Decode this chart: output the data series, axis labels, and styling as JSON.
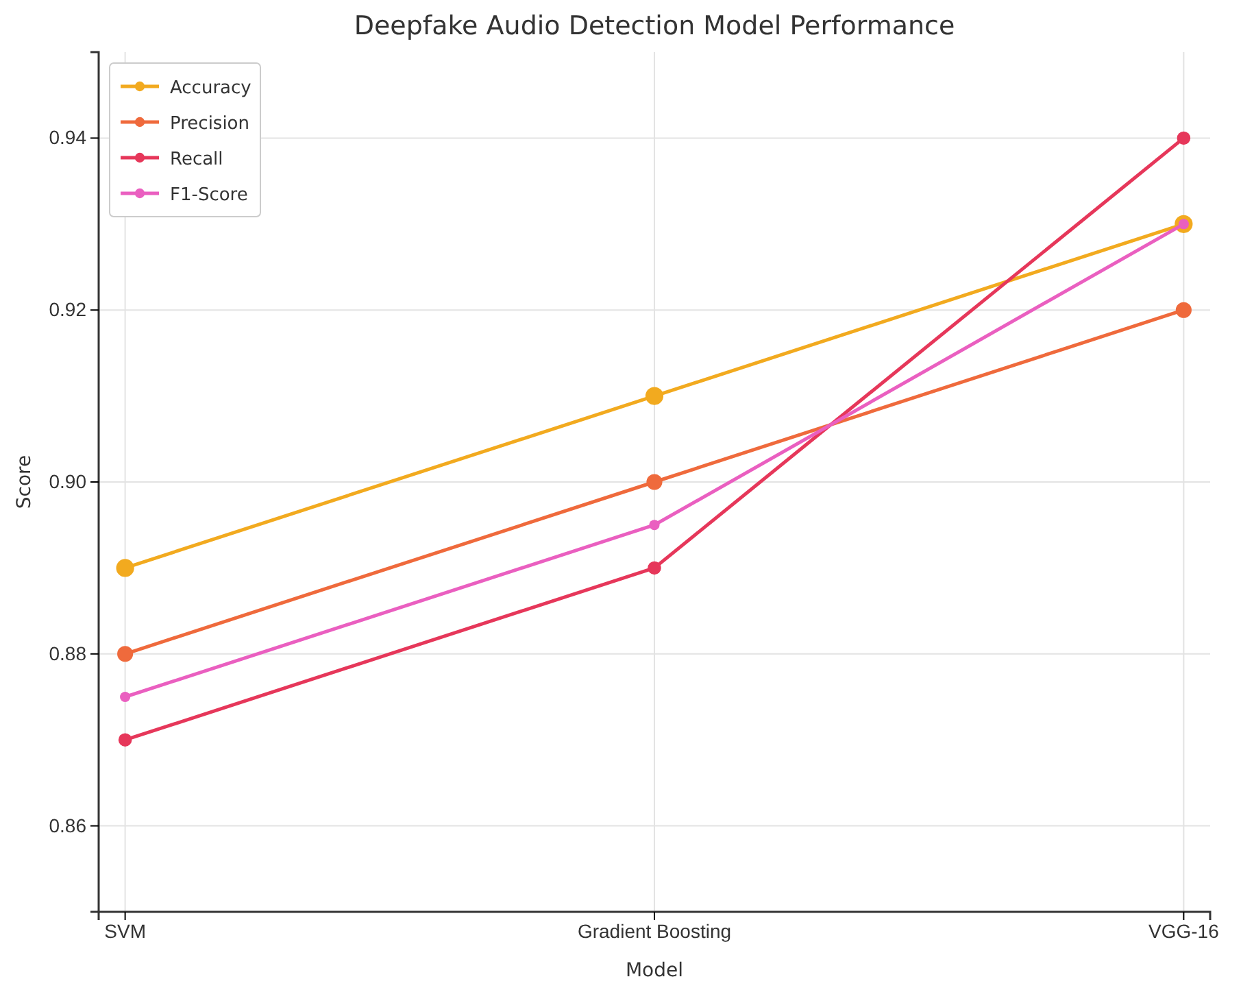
{
  "chart_data": {
    "type": "line",
    "title": "Deepfake Audio Detection Model Performance",
    "xlabel": "Model",
    "ylabel": "Score",
    "categories": [
      "SVM",
      "Gradient Boosting",
      "VGG-16"
    ],
    "series": [
      {
        "name": "Accuracy",
        "color": "#f2aa1f",
        "values": [
          0.89,
          0.91,
          0.93
        ]
      },
      {
        "name": "Precision",
        "color": "#ef6a3c",
        "values": [
          0.88,
          0.9,
          0.92
        ]
      },
      {
        "name": "Recall",
        "color": "#e6375a",
        "values": [
          0.87,
          0.89,
          0.94
        ]
      },
      {
        "name": "F1-Score",
        "color": "#ea5fc0",
        "values": [
          0.875,
          0.895,
          0.93
        ]
      }
    ],
    "ylim": [
      0.85,
      0.95
    ],
    "yticks": [
      0.86,
      0.88,
      {
        "value": 0.9,
        "label": "0.90"
      },
      0.92,
      0.94
    ],
    "grid": true,
    "legend": "top left",
    "marker": "circle",
    "line_style": "solid"
  }
}
